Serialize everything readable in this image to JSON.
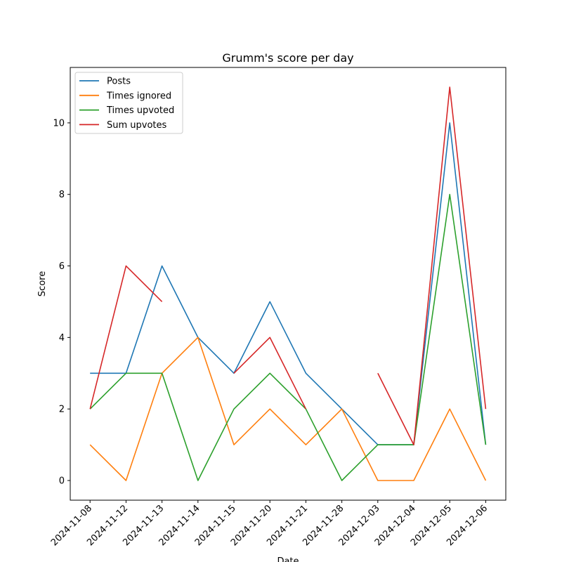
{
  "chart_data": {
    "type": "line",
    "title": "Grumm's score per day",
    "xlabel": "Date",
    "ylabel": "Score",
    "categories": [
      "2024-11-08",
      "2024-11-12",
      "2024-11-13",
      "2024-11-14",
      "2024-11-15",
      "2024-11-20",
      "2024-11-21",
      "2024-11-28",
      "2024-12-03",
      "2024-12-04",
      "2024-12-05",
      "2024-12-06"
    ],
    "ylim": [
      -0.55,
      11.55
    ],
    "yticks": [
      0,
      2,
      4,
      6,
      8,
      10
    ],
    "grid": false,
    "legend_position": "top-left",
    "series": [
      {
        "name": "Posts",
        "color": "#1f77b4",
        "values": [
          3,
          3,
          6,
          4,
          3,
          5,
          3,
          2,
          1,
          1,
          10,
          1
        ]
      },
      {
        "name": "Times ignored",
        "color": "#ff7f0e",
        "values": [
          1,
          0,
          3,
          4,
          1,
          2,
          1,
          2,
          0,
          0,
          2,
          0
        ]
      },
      {
        "name": "Times upvoted",
        "color": "#2ca02c",
        "values": [
          2,
          3,
          3,
          0,
          2,
          3,
          2,
          0,
          1,
          1,
          8,
          1
        ]
      },
      {
        "name": "Sum upvotes",
        "color": "#d62728",
        "values": [
          2,
          6,
          5,
          null,
          3,
          4,
          2,
          null,
          3,
          1,
          11,
          2
        ]
      }
    ]
  }
}
